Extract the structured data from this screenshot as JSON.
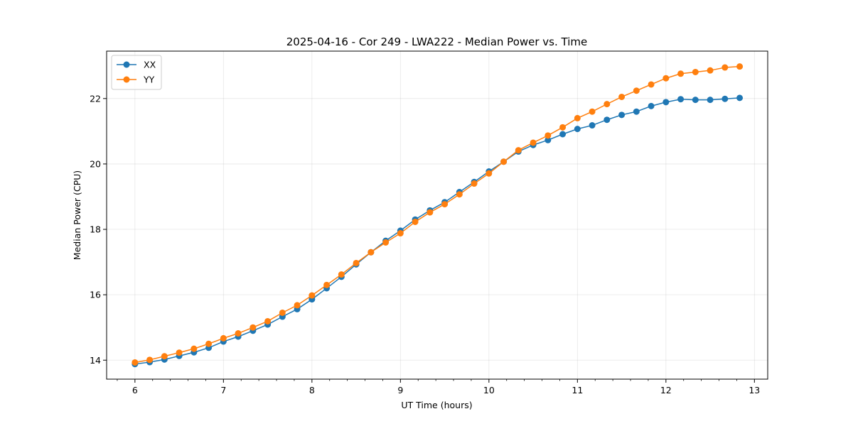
{
  "chart_data": {
    "type": "line",
    "title": "2025-04-16 - Cor 249 - LWA222 - Median Power vs. Time",
    "xlabel": "UT Time (hours)",
    "ylabel": "Median Power (CPU)",
    "xlim": [
      5.68,
      13.15
    ],
    "ylim": [
      13.42,
      23.45
    ],
    "xticks": [
      6,
      7,
      8,
      9,
      10,
      11,
      12,
      13
    ],
    "xtick_labels": [
      "6",
      "7",
      "8",
      "9",
      "10",
      "11",
      "12",
      "13"
    ],
    "yticks": [
      14,
      16,
      18,
      20,
      22
    ],
    "ytick_labels": [
      "14",
      "16",
      "18",
      "20",
      "22"
    ],
    "grid": true,
    "legend_position": "top-left",
    "x": [
      6.0,
      6.1667,
      6.3333,
      6.5,
      6.6667,
      6.8333,
      7.0,
      7.1667,
      7.3333,
      7.5,
      7.6667,
      7.8333,
      8.0,
      8.1667,
      8.3333,
      8.5,
      8.6667,
      8.8333,
      9.0,
      9.1667,
      9.3333,
      9.5,
      9.6667,
      9.8333,
      10.0,
      10.1667,
      10.3333,
      10.5,
      10.6667,
      10.8333,
      11.0,
      11.1667,
      11.3333,
      11.5,
      11.6667,
      11.8333,
      12.0,
      12.1667,
      12.3333,
      12.5,
      12.6667,
      12.8333
    ],
    "series": [
      {
        "name": "XX",
        "color": "#1f77b4",
        "values": [
          13.88,
          13.94,
          14.02,
          14.13,
          14.24,
          14.38,
          14.57,
          14.72,
          14.9,
          15.09,
          15.33,
          15.56,
          15.86,
          16.2,
          16.55,
          16.93,
          17.3,
          17.65,
          17.96,
          18.3,
          18.58,
          18.83,
          19.14,
          19.45,
          19.77,
          20.07,
          20.38,
          20.58,
          20.73,
          20.91,
          21.07,
          21.18,
          21.35,
          21.5,
          21.6,
          21.77,
          21.89,
          21.98,
          21.96,
          21.96,
          21.99,
          22.02
        ]
      },
      {
        "name": "YY",
        "color": "#ff7f0e",
        "values": [
          13.93,
          14.01,
          14.12,
          14.23,
          14.35,
          14.5,
          14.67,
          14.82,
          15.0,
          15.19,
          15.45,
          15.68,
          15.98,
          16.3,
          16.62,
          16.97,
          17.3,
          17.6,
          17.88,
          18.23,
          18.52,
          18.77,
          19.07,
          19.4,
          19.71,
          20.07,
          20.42,
          20.65,
          20.87,
          21.12,
          21.4,
          21.6,
          21.83,
          22.05,
          22.24,
          22.43,
          22.62,
          22.76,
          22.81,
          22.86,
          22.95,
          22.98
        ]
      }
    ]
  }
}
